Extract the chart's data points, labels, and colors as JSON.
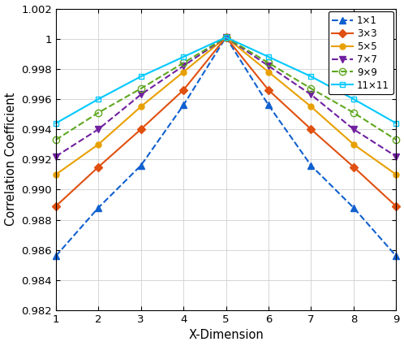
{
  "title": "",
  "xlabel": "X-Dimension",
  "ylabel": "Correlation Coefficient",
  "xlim": [
    1,
    9
  ],
  "ylim": [
    0.982,
    1.002
  ],
  "yticks": [
    0.982,
    0.984,
    0.986,
    0.988,
    0.99,
    0.992,
    0.994,
    0.996,
    0.998,
    1.0,
    1.002
  ],
  "xticks": [
    1,
    2,
    3,
    4,
    5,
    6,
    7,
    8,
    9
  ],
  "series": [
    {
      "label": "1×1",
      "x": [
        1,
        2,
        3,
        4,
        5,
        6,
        7,
        8,
        9
      ],
      "y": [
        0.9856,
        0.9888,
        0.9916,
        0.9956,
        1.0001,
        0.9956,
        0.9916,
        0.9888,
        0.9856
      ],
      "color": "#1060d0",
      "linestyle": "--",
      "marker": "^",
      "markersize": 6,
      "markerfacecolor": "#1060d0",
      "linewidth": 1.5
    },
    {
      "label": "3×3",
      "x": [
        1,
        2,
        3,
        4,
        5,
        6,
        7,
        8,
        9
      ],
      "y": [
        0.9889,
        0.9915,
        0.994,
        0.9966,
        1.0001,
        0.9966,
        0.994,
        0.9915,
        0.9889
      ],
      "color": "#e05010",
      "linestyle": "-",
      "marker": "D",
      "markersize": 5,
      "markerfacecolor": "#e05010",
      "linewidth": 1.5
    },
    {
      "label": "5×5",
      "x": [
        1,
        2,
        3,
        4,
        5,
        6,
        7,
        8,
        9
      ],
      "y": [
        0.991,
        0.993,
        0.9955,
        0.9978,
        1.0001,
        0.9978,
        0.9955,
        0.993,
        0.991
      ],
      "color": "#e8a000",
      "linestyle": "-",
      "marker": "o",
      "markersize": 5,
      "markerfacecolor": "#e8a000",
      "linewidth": 1.5
    },
    {
      "label": "7×7",
      "x": [
        1,
        2,
        3,
        4,
        5,
        6,
        7,
        8,
        9
      ],
      "y": [
        0.9922,
        0.994,
        0.9963,
        0.9982,
        1.0001,
        0.9982,
        0.9963,
        0.994,
        0.9922
      ],
      "color": "#7020a0",
      "linestyle": "--",
      "marker": "v",
      "markersize": 6,
      "markerfacecolor": "#7020a0",
      "linewidth": 1.5
    },
    {
      "label": "9×9",
      "x": [
        1,
        2,
        3,
        4,
        5,
        6,
        7,
        8,
        9
      ],
      "y": [
        0.9933,
        0.9951,
        0.9967,
        0.9984,
        1.0001,
        0.9984,
        0.9967,
        0.9951,
        0.9933
      ],
      "color": "#60a820",
      "linestyle": "--",
      "marker": "o",
      "markersize": 6,
      "markerfacecolor": "none",
      "linewidth": 1.5
    },
    {
      "label": "11×11",
      "x": [
        1,
        2,
        3,
        4,
        5,
        6,
        7,
        8,
        9
      ],
      "y": [
        0.9944,
        0.996,
        0.9975,
        0.9988,
        1.0001,
        0.9988,
        0.9975,
        0.996,
        0.9944
      ],
      "color": "#00c8ff",
      "linestyle": "-",
      "marker": "s",
      "markersize": 5,
      "markerfacecolor": "none",
      "linewidth": 1.5
    }
  ],
  "background_color": "#ffffff",
  "grid_color": "#d0d0d0"
}
